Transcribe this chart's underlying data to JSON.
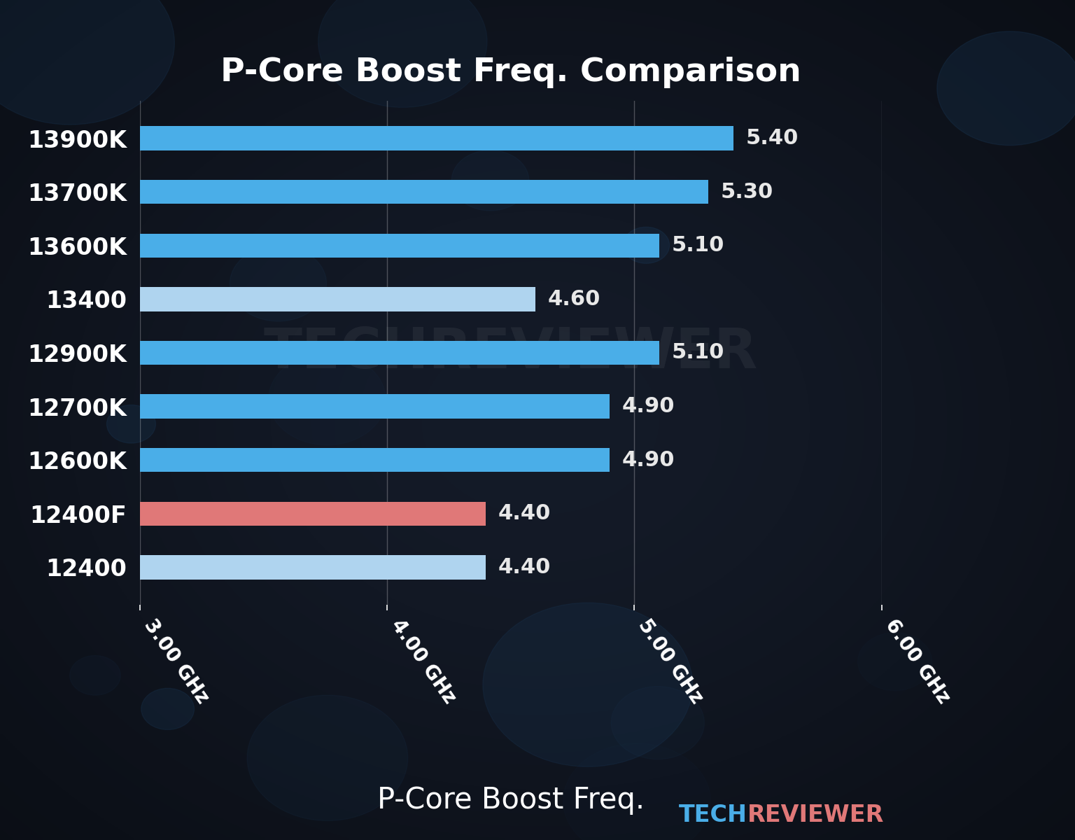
{
  "title": "P-Core Boost Freq. Comparison",
  "xlabel": "P-Core Boost Freq.",
  "categories": [
    "13900K",
    "13700K",
    "13600K",
    "13400",
    "12900K",
    "12700K",
    "12600K",
    "12400F",
    "12400"
  ],
  "values": [
    5.4,
    5.3,
    5.1,
    4.6,
    5.1,
    4.9,
    4.9,
    4.4,
    4.4
  ],
  "bar_colors": [
    "#4aaee8",
    "#4aaee8",
    "#4aaee8",
    "#afd4ef",
    "#4aaee8",
    "#4aaee8",
    "#4aaee8",
    "#e07878",
    "#afd4ef"
  ],
  "value_labels": [
    "5.40",
    "5.30",
    "5.10",
    "4.60",
    "5.10",
    "4.90",
    "4.90",
    "4.40",
    "4.40"
  ],
  "ytick_colors": [
    "#4aaee8",
    "#4aaee8",
    "#4aaee8",
    "#afd4ef",
    "#4aaee8",
    "#4aaee8",
    "#4aaee8",
    "#4aaee8",
    "#afd4ef"
  ],
  "xlim": [
    3.0,
    6.0
  ],
  "xticks": [
    3.0,
    4.0,
    5.0,
    6.0
  ],
  "xtick_labels": [
    "3.00 GHz",
    "4.00 GHz",
    "5.00 GHz",
    "6.00 GHz"
  ],
  "title_fontsize": 34,
  "label_fontsize": 24,
  "tick_fontsize": 20,
  "value_fontsize": 22,
  "xlabel_fontsize": 30,
  "bar_height": 0.45,
  "title_color": "#ffffff",
  "tick_color": "#ffffff",
  "value_color": "#e8e8e8",
  "grid_color": "#ffffff",
  "grid_alpha": 0.25,
  "bg_dark": "#0d1a25",
  "bg_mid": "#1a2d3f",
  "watermark_text": "TECHREVIEWER",
  "brand_tech_color": "#4aaee8",
  "brand_reviewer_color": "#e07878",
  "brand_tech": "TECH",
  "brand_reviewer": "REVIEWER",
  "brand_fontsize": 24
}
